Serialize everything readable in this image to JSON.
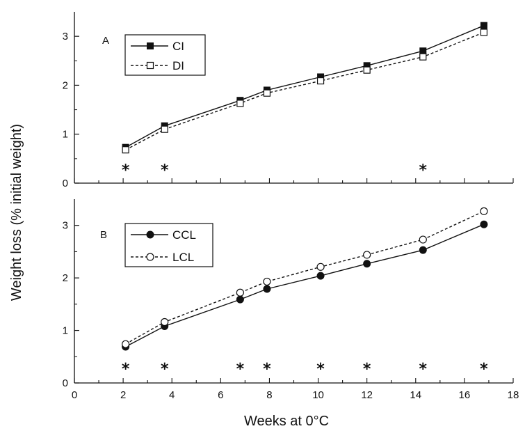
{
  "chart_data": {
    "type": "line",
    "xlabel": "Weeks at 0°C",
    "ylabel": "Weight loss (% initial weight)",
    "xlim": [
      0,
      18
    ],
    "x_ticks": [
      "0",
      "2",
      "4",
      "6",
      "8",
      "10",
      "12",
      "14",
      "16",
      "18"
    ],
    "panels": [
      {
        "label": "A",
        "ylim": [
          0,
          3.5
        ],
        "y_ticks": [
          "0",
          "1",
          "2",
          "3"
        ],
        "legend_position": "top-left",
        "series": [
          {
            "name": "CI",
            "marker": "filled-square",
            "line": "solid",
            "x": [
              2.1,
              3.7,
              6.8,
              7.9,
              10.1,
              12.0,
              14.3,
              16.8
            ],
            "y": [
              0.73,
              1.17,
              1.69,
              1.9,
              2.17,
              2.4,
              2.7,
              3.22
            ]
          },
          {
            "name": "DI",
            "marker": "open-square",
            "line": "dashed",
            "x": [
              2.1,
              3.7,
              6.8,
              7.9,
              10.1,
              12.0,
              14.3,
              16.8
            ],
            "y": [
              0.68,
              1.1,
              1.63,
              1.84,
              2.09,
              2.31,
              2.58,
              3.08
            ]
          }
        ],
        "significance_marks": {
          "symbol": "*",
          "x": [
            2.1,
            3.7,
            14.3
          ]
        }
      },
      {
        "label": "B",
        "ylim": [
          0,
          3.5
        ],
        "y_ticks": [
          "0",
          "1",
          "2",
          "3"
        ],
        "legend_position": "top-left",
        "series": [
          {
            "name": "CCL",
            "marker": "filled-circle",
            "line": "solid",
            "x": [
              2.1,
              3.7,
              6.8,
              7.9,
              10.1,
              12.0,
              14.3,
              16.8
            ],
            "y": [
              0.69,
              1.08,
              1.59,
              1.79,
              2.04,
              2.27,
              2.53,
              3.02
            ]
          },
          {
            "name": "LCL",
            "marker": "open-circle",
            "line": "dashed",
            "x": [
              2.1,
              3.7,
              6.8,
              7.9,
              10.1,
              12.0,
              14.3,
              16.8
            ],
            "y": [
              0.74,
              1.16,
              1.72,
              1.93,
              2.21,
              2.44,
              2.73,
              3.27
            ]
          }
        ],
        "significance_marks": {
          "symbol": "*",
          "x": [
            2.1,
            3.7,
            6.8,
            7.9,
            10.1,
            12.0,
            14.3,
            16.8
          ]
        }
      }
    ]
  }
}
